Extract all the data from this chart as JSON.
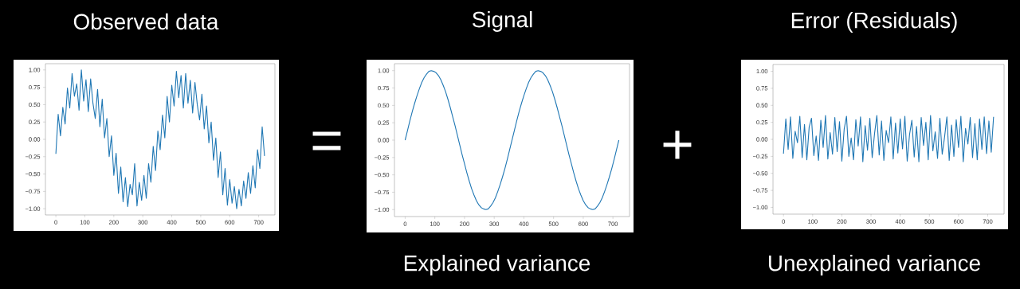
{
  "chart_data": [
    {
      "type": "line",
      "title": "Observed data",
      "x": [
        0,
        8,
        16,
        24,
        32,
        40,
        48,
        56,
        64,
        72,
        80,
        88,
        96,
        104,
        112,
        120,
        128,
        136,
        144,
        152,
        160,
        168,
        176,
        184,
        192,
        200,
        208,
        216,
        224,
        232,
        240,
        248,
        256,
        264,
        272,
        280,
        288,
        296,
        304,
        312,
        320,
        328,
        336,
        344,
        352,
        360,
        368,
        376,
        384,
        392,
        400,
        408,
        416,
        424,
        432,
        440,
        448,
        456,
        464,
        472,
        480,
        488,
        496,
        504,
        512,
        520,
        528,
        536,
        544,
        552,
        560,
        568,
        576,
        584,
        592,
        600,
        608,
        616,
        624,
        632,
        640,
        648,
        656,
        664,
        672,
        680,
        688,
        696,
        704,
        712,
        720
      ],
      "series": [
        {
          "color": "#1f77b4",
          "values": [
            -0.21,
            0.36,
            0.05,
            0.46,
            0.22,
            0.74,
            0.45,
            0.95,
            0.62,
            0.8,
            0.42,
            1.0,
            0.55,
            0.86,
            0.4,
            0.87,
            0.52,
            0.3,
            0.72,
            0.18,
            0.58,
            0.02,
            0.3,
            -0.25,
            0.05,
            -0.52,
            -0.2,
            -0.78,
            -0.4,
            -0.9,
            -0.55,
            -0.97,
            -0.65,
            -0.8,
            -0.35,
            -0.96,
            -0.62,
            -0.88,
            -0.52,
            -0.85,
            -0.35,
            -0.62,
            -0.1,
            -0.45,
            0.12,
            -0.15,
            0.35,
            0.02,
            0.62,
            0.25,
            0.78,
            0.48,
            0.98,
            0.6,
            0.92,
            0.45,
            0.95,
            0.52,
            0.85,
            0.38,
            0.82,
            0.5,
            0.28,
            0.65,
            0.15,
            0.48,
            -0.05,
            0.25,
            -0.3,
            0.02,
            -0.55,
            -0.18,
            -0.8,
            -0.42,
            -0.95,
            -0.58,
            -0.92,
            -0.68,
            -1.0,
            -0.72,
            -0.96,
            -0.6,
            -0.85,
            -0.48,
            -0.78,
            -0.38,
            -0.7,
            -0.15,
            -0.42,
            0.18,
            -0.24
          ]
        }
      ],
      "xlim": [
        -36,
        756
      ],
      "ylim": [
        -1.09,
        1.09
      ],
      "xticks": [
        0,
        100,
        200,
        300,
        400,
        500,
        600,
        700
      ],
      "yticks": [
        {
          "value": -1,
          "label": "−1.00"
        },
        {
          "value": -0.75,
          "label": "−0.75"
        },
        {
          "value": -0.5,
          "label": "−0.50"
        },
        {
          "value": -0.25,
          "label": "−0.25"
        },
        {
          "value": 0,
          "label": "0.00"
        },
        {
          "value": 0.25,
          "label": "0.25"
        },
        {
          "value": 0.5,
          "label": "0.50"
        },
        {
          "value": 0.75,
          "label": "0.75"
        },
        {
          "value": 1,
          "label": "1.00"
        }
      ],
      "grid": false
    },
    {
      "type": "line",
      "title": "Signal",
      "annotations": [
        "=",
        "Explained variance"
      ],
      "x": [
        0,
        8,
        16,
        24,
        32,
        40,
        48,
        56,
        64,
        72,
        80,
        88,
        96,
        104,
        112,
        120,
        128,
        136,
        144,
        152,
        160,
        168,
        176,
        184,
        192,
        200,
        208,
        216,
        224,
        232,
        240,
        248,
        256,
        264,
        272,
        280,
        288,
        296,
        304,
        312,
        320,
        328,
        336,
        344,
        352,
        360,
        368,
        376,
        384,
        392,
        400,
        408,
        416,
        424,
        432,
        440,
        448,
        456,
        464,
        472,
        480,
        488,
        496,
        504,
        512,
        520,
        528,
        536,
        544,
        552,
        560,
        568,
        576,
        584,
        592,
        600,
        608,
        616,
        624,
        632,
        640,
        648,
        656,
        664,
        672,
        680,
        688,
        696,
        704,
        712,
        720
      ],
      "series": [
        {
          "color": "#1f77b4",
          "values": [
            0,
            0.14,
            0.28,
            0.41,
            0.53,
            0.64,
            0.74,
            0.83,
            0.9,
            0.95,
            0.99,
            1.0,
            0.99,
            0.97,
            0.93,
            0.87,
            0.79,
            0.7,
            0.59,
            0.47,
            0.34,
            0.21,
            0.07,
            -0.07,
            -0.21,
            -0.34,
            -0.47,
            -0.59,
            -0.7,
            -0.79,
            -0.87,
            -0.93,
            -0.97,
            -0.99,
            -1.0,
            -0.99,
            -0.95,
            -0.9,
            -0.83,
            -0.74,
            -0.64,
            -0.53,
            -0.41,
            -0.28,
            -0.14,
            0,
            0.14,
            0.28,
            0.41,
            0.53,
            0.64,
            0.74,
            0.83,
            0.9,
            0.95,
            0.99,
            1.0,
            0.99,
            0.97,
            0.93,
            0.87,
            0.79,
            0.7,
            0.59,
            0.47,
            0.34,
            0.21,
            0.07,
            -0.07,
            -0.21,
            -0.34,
            -0.47,
            -0.59,
            -0.7,
            -0.79,
            -0.87,
            -0.93,
            -0.97,
            -0.99,
            -1.0,
            -0.99,
            -0.95,
            -0.9,
            -0.83,
            -0.74,
            -0.64,
            -0.53,
            -0.41,
            -0.28,
            -0.14,
            0
          ]
        }
      ],
      "xlim": [
        -36,
        756
      ],
      "ylim": [
        -1.1,
        1.1
      ],
      "xticks": [
        0,
        100,
        200,
        300,
        400,
        500,
        600,
        700
      ],
      "yticks": [
        {
          "value": -1,
          "label": "−1.00"
        },
        {
          "value": -0.75,
          "label": "−0.75"
        },
        {
          "value": -0.5,
          "label": "−0.50"
        },
        {
          "value": -0.25,
          "label": "−0.25"
        },
        {
          "value": 0,
          "label": "0.00"
        },
        {
          "value": 0.25,
          "label": "0.25"
        },
        {
          "value": 0.5,
          "label": "0.50"
        },
        {
          "value": 0.75,
          "label": "0.75"
        },
        {
          "value": 1,
          "label": "1.00"
        }
      ],
      "grid": false
    },
    {
      "type": "line",
      "title": "Error (Residuals)",
      "annotations": [
        "+",
        "Unexplained variance"
      ],
      "x": [
        0,
        8,
        16,
        24,
        32,
        40,
        48,
        56,
        64,
        72,
        80,
        88,
        96,
        104,
        112,
        120,
        128,
        136,
        144,
        152,
        160,
        168,
        176,
        184,
        192,
        200,
        208,
        216,
        224,
        232,
        240,
        248,
        256,
        264,
        272,
        280,
        288,
        296,
        304,
        312,
        320,
        328,
        336,
        344,
        352,
        360,
        368,
        376,
        384,
        392,
        400,
        408,
        416,
        424,
        432,
        440,
        448,
        456,
        464,
        472,
        480,
        488,
        496,
        504,
        512,
        520,
        528,
        536,
        544,
        552,
        560,
        568,
        576,
        584,
        592,
        600,
        608,
        616,
        624,
        632,
        640,
        648,
        656,
        664,
        672,
        680,
        688,
        696,
        704,
        712,
        720
      ],
      "series": [
        {
          "color": "#1f77b4",
          "values": [
            -0.21,
            0.3,
            -0.15,
            0.33,
            -0.28,
            0.12,
            -0.05,
            0.34,
            -0.27,
            0.22,
            -0.3,
            0.18,
            0.31,
            -0.24,
            0.05,
            -0.31,
            0.28,
            -0.12,
            0.35,
            -0.29,
            0.1,
            -0.22,
            0.32,
            -0.18,
            0.26,
            -0.32,
            0.15,
            0.34,
            -0.25,
            0.02,
            -0.3,
            0.29,
            -0.1,
            0.33,
            -0.33,
            0.2,
            -0.16,
            0.31,
            -0.27,
            0.08,
            0.35,
            -0.23,
            0.27,
            -0.31,
            0.13,
            -0.05,
            0.33,
            -0.29,
            0.24,
            -0.2,
            0.3,
            -0.14,
            0.34,
            -0.32,
            0.07,
            0.28,
            -0.26,
            0.19,
            -0.33,
            0.32,
            -0.09,
            0.25,
            -0.3,
            0.35,
            -0.17,
            0.11,
            -0.28,
            0.31,
            -0.22,
            0.03,
            0.33,
            -0.31,
            0.21,
            -0.25,
            0.29,
            -0.12,
            0.34,
            -0.33,
            0.16,
            -0.07,
            0.32,
            -0.27,
            0.23,
            -0.3,
            0.3,
            -0.15,
            0.33,
            -0.21,
            0.27,
            -0.19,
            0.33
          ]
        }
      ],
      "xlim": [
        -36,
        756
      ],
      "ylim": [
        -1.1,
        1.1
      ],
      "xticks": [
        0,
        100,
        200,
        300,
        400,
        500,
        600,
        700
      ],
      "yticks": [
        {
          "value": -1,
          "label": "−1.00"
        },
        {
          "value": -0.75,
          "label": "−0.75"
        },
        {
          "value": -0.5,
          "label": "−0.50"
        },
        {
          "value": -0.25,
          "label": "−0.25"
        },
        {
          "value": 0,
          "label": "0.00"
        },
        {
          "value": 0.25,
          "label": "0.25"
        },
        {
          "value": 0.5,
          "label": "0.50"
        },
        {
          "value": 0.75,
          "label": "0.75"
        },
        {
          "value": 1,
          "label": "1.00"
        }
      ],
      "grid": false
    }
  ]
}
